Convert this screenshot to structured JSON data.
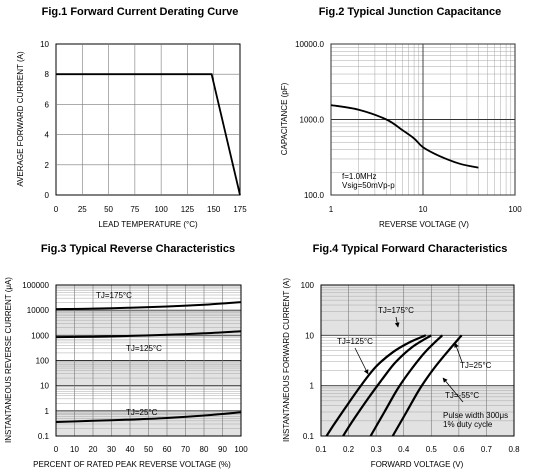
{
  "charts": [
    {
      "title": "Fig.1 Forward Current Derating Curve",
      "type": "line",
      "xlabel": "LEAD TEMPERATURE (°C)",
      "ylabel": "AVERAGE FORWARD CURRENT (A)",
      "x_ticks": [
        0,
        25,
        50,
        75,
        100,
        125,
        150,
        175
      ],
      "y_ticks": [
        0,
        2,
        4,
        6,
        8,
        10
      ],
      "xlim": [
        0,
        175
      ],
      "ylim": [
        0,
        10
      ]
    },
    {
      "title": "Fig.2 Typical Junction Capacitance",
      "type": "line",
      "xlabel": "REVERSE VOLTAGE (V)",
      "ylabel": "CAPACITANCE (pF)",
      "x_ticks": [
        "1",
        "10",
        "100"
      ],
      "y_ticks": [
        "100.0",
        "1000.0",
        "10000.0"
      ],
      "scale": "log-log",
      "annotations": [
        "f=1.0MHz",
        "Vsig=50mVp-p"
      ]
    },
    {
      "title": "Fig.3 Typical Reverse Characteristics",
      "type": "line",
      "xlabel": "PERCENT OF RATED PEAK REVERSE VOLTAGE (%)",
      "ylabel": "INSTANTANEOUS REVERSE CURRENT (μA)",
      "x_ticks": [
        0,
        10,
        20,
        30,
        40,
        50,
        60,
        70,
        80,
        90,
        100
      ],
      "y_ticks": [
        "0.1",
        "1",
        "10",
        "100",
        "1000",
        "10000",
        "100000"
      ],
      "scale": "log-y",
      "curve_labels": [
        "TJ=175°C",
        "TJ=125°C",
        "TJ=25°C"
      ]
    },
    {
      "title": "Fig.4 Typical Forward Characteristics",
      "type": "line",
      "xlabel": "FORWARD VOLTAGE (V)",
      "ylabel": "INSTANTANEOUS FORWARD CURRENT (A)",
      "x_ticks": [
        "0.1",
        "0.2",
        "0.3",
        "0.4",
        "0.5",
        "0.6",
        "0.7",
        "0.8"
      ],
      "y_ticks": [
        "0.1",
        "1",
        "10",
        "100"
      ],
      "scale": "log-y",
      "curve_labels": [
        "TJ=175°C",
        "TJ=125°C",
        "TJ=25°C",
        "TJ=-55°C"
      ],
      "annotations": [
        "Pulse width 300μs",
        "1% duty cycle"
      ]
    }
  ],
  "chart_data": [
    {
      "type": "line",
      "title": "Fig.1 Forward Current Derating Curve",
      "xlabel": "LEAD TEMPERATURE (°C)",
      "ylabel": "AVERAGE FORWARD CURRENT (A)",
      "xlim": [
        0,
        175
      ],
      "ylim": [
        0,
        10
      ],
      "grid": true,
      "series": [
        {
          "x": [
            0,
            148,
            175
          ],
          "y": [
            8,
            8,
            0
          ]
        }
      ]
    },
    {
      "type": "line",
      "title": "Fig.2 Typical Junction Capacitance",
      "xlabel": "REVERSE VOLTAGE (V)",
      "ylabel": "CAPACITANCE (pF)",
      "xlim": [
        1,
        100
      ],
      "ylim": [
        100,
        10000
      ],
      "xscale": "log",
      "yscale": "log",
      "grid": true,
      "series": [
        {
          "x": [
            1,
            2,
            4,
            6,
            8,
            10,
            15,
            25,
            40
          ],
          "y": [
            1550,
            1350,
            1000,
            720,
            560,
            430,
            330,
            260,
            230
          ]
        }
      ]
    },
    {
      "type": "line",
      "title": "Fig.3 Typical Reverse Characteristics",
      "xlabel": "PERCENT OF RATED PEAK REVERSE VOLTAGE (%)",
      "ylabel": "INSTANTANEOUS REVERSE CURRENT (μA)",
      "xlim": [
        0,
        100
      ],
      "ylim": [
        0.1,
        100000
      ],
      "yscale": "log",
      "grid": true,
      "series": [
        {
          "name": "TJ=175°C",
          "x": [
            0,
            20,
            40,
            60,
            80,
            100
          ],
          "y": [
            11000,
            11500,
            12500,
            14000,
            16500,
            21000
          ]
        },
        {
          "name": "TJ=125°C",
          "x": [
            0,
            20,
            40,
            60,
            80,
            100
          ],
          "y": [
            850,
            880,
            950,
            1050,
            1200,
            1450
          ]
        },
        {
          "name": "TJ=25°C",
          "x": [
            0,
            20,
            40,
            60,
            80,
            100
          ],
          "y": [
            0.36,
            0.4,
            0.45,
            0.52,
            0.65,
            0.88
          ]
        }
      ]
    },
    {
      "type": "line",
      "title": "Fig.4 Typical Forward Characteristics",
      "xlabel": "FORWARD VOLTAGE (V)",
      "ylabel": "INSTANTANEOUS FORWARD CURRENT (A)",
      "xlim": [
        0.1,
        0.8
      ],
      "ylim": [
        0.1,
        100
      ],
      "yscale": "log",
      "grid": true,
      "series": [
        {
          "name": "TJ=175°C",
          "x": [
            0.12,
            0.15,
            0.2,
            0.25,
            0.3,
            0.36,
            0.42,
            0.48
          ],
          "y": [
            0.1,
            0.18,
            0.45,
            1.1,
            2.4,
            4.6,
            7.2,
            10
          ]
        },
        {
          "name": "TJ=125°C",
          "x": [
            0.18,
            0.22,
            0.27,
            0.32,
            0.37,
            0.43,
            0.5
          ],
          "y": [
            0.1,
            0.22,
            0.55,
            1.3,
            2.9,
            5.8,
            10
          ]
        },
        {
          "name": "TJ=25°C",
          "x": [
            0.28,
            0.33,
            0.38,
            0.43,
            0.48,
            0.54
          ],
          "y": [
            0.1,
            0.3,
            0.9,
            2.2,
            4.8,
            10
          ]
        },
        {
          "name": "TJ=-55°C",
          "x": [
            0.36,
            0.41,
            0.46,
            0.51,
            0.56,
            0.61
          ],
          "y": [
            0.1,
            0.3,
            0.9,
            2.2,
            4.8,
            10
          ]
        }
      ]
    }
  ]
}
